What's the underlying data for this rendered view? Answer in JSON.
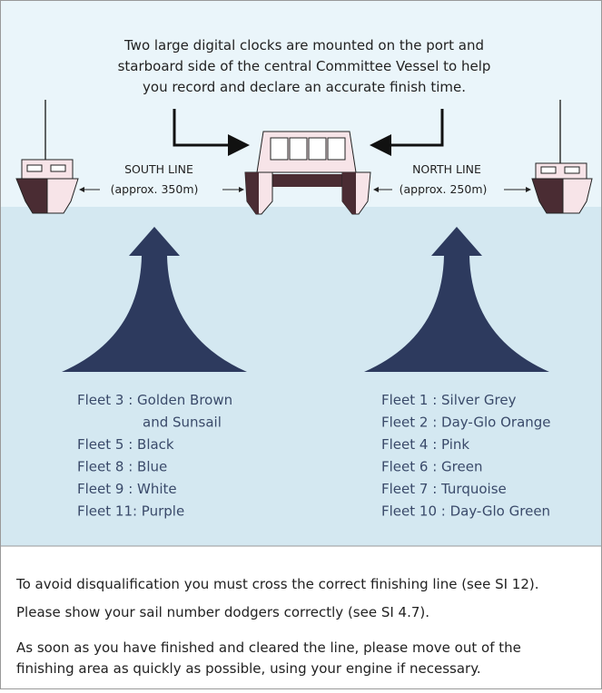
{
  "caption": [
    "Two large digital clocks are mounted on the port and",
    "starboard side of the central Committee Vessel to help",
    "you record and declare an accurate finish time."
  ],
  "south_line": {
    "label": "SOUTH LINE",
    "distance": "(approx. 350m)"
  },
  "north_line": {
    "label": "NORTH LINE",
    "distance": "(approx. 250m)"
  },
  "south_fleets": [
    "Fleet 3 : Golden Brown",
    "and Sunsail",
    "Fleet 5 : Black",
    "Fleet 8 : Blue",
    "Fleet 9 : White",
    "Fleet 11: Purple"
  ],
  "north_fleets": [
    "Fleet 1 : Silver Grey",
    "Fleet 2 : Day-Glo Orange",
    "Fleet 4 : Pink",
    "Fleet 6 : Green",
    "Fleet 7 : Turquoise",
    "Fleet 10 : Day-Glo Green"
  ],
  "notes": [
    "To avoid disqualification you must cross the correct finishing line (see SI 12).",
    "Please show your sail number dodgers correctly (see SI 4.7).",
    "As soon as you have finished and cleared the line, please move out of the",
    "finishing area as quickly as possible, using your engine if necessary."
  ]
}
